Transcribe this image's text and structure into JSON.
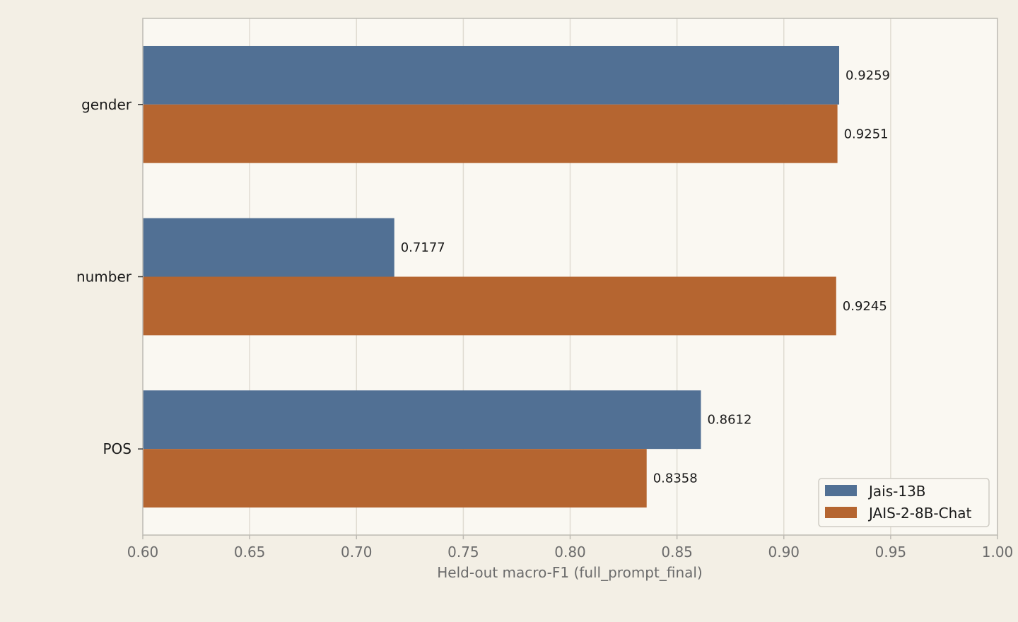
{
  "chart_data": {
    "type": "bar",
    "orientation": "horizontal",
    "categories": [
      "gender",
      "number",
      "POS"
    ],
    "series": [
      {
        "name": "Jais-13B",
        "values": [
          0.9259,
          0.7177,
          0.8612
        ],
        "color": "#517094"
      },
      {
        "name": "JAIS-2-8B-Chat",
        "values": [
          0.9251,
          0.9245,
          0.8358
        ],
        "color": "#b56530"
      }
    ],
    "value_labels": {
      "Jais-13B": [
        "0.9259",
        "0.7177",
        "0.8612"
      ],
      "JAIS-2-8B-Chat": [
        "0.9251",
        "0.9245",
        "0.8358"
      ]
    },
    "xlabel": "Held-out macro-F1 (full_prompt_final)",
    "ylabel": "",
    "xlim": [
      0.6,
      1.0
    ],
    "xticks": [
      "0.60",
      "0.65",
      "0.70",
      "0.75",
      "0.80",
      "0.85",
      "0.90",
      "0.95",
      "1.00"
    ],
    "grid": "vertical",
    "legend_position": "lower-right"
  },
  "colors": {
    "page_background": "#f3efe5",
    "plot_background": "#faf8f2",
    "grid": "#e0dcd2",
    "axis": "#bdbab3",
    "tick_text": "#6b6b6b",
    "category_text": "#1a1a1a"
  }
}
